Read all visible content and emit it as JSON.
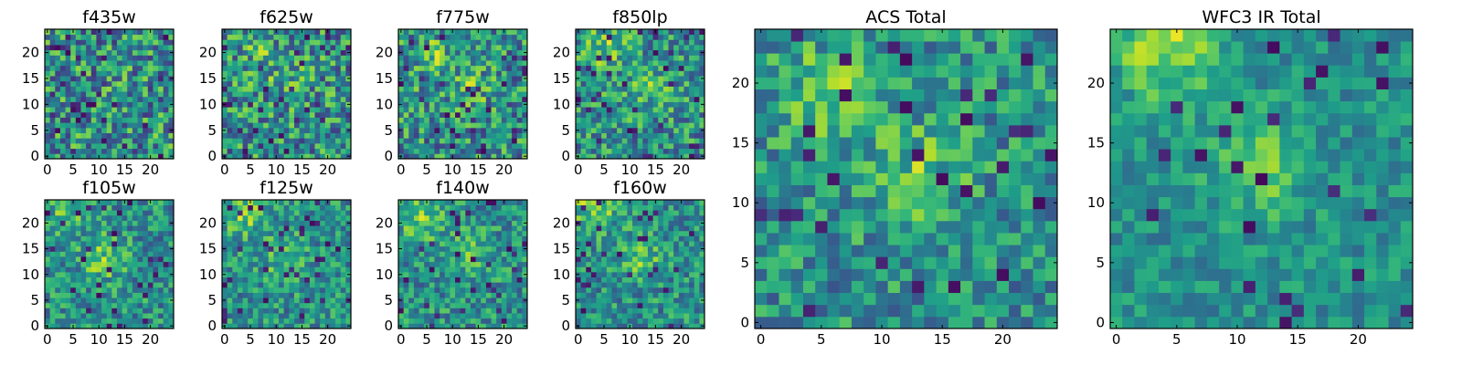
{
  "chart_data": [
    {
      "type": "heatmap",
      "title": "f435w",
      "xticks": [
        0,
        5,
        10,
        15,
        20
      ],
      "yticks": [
        0,
        5,
        10,
        15,
        20
      ],
      "xlim": [
        -0.5,
        24.5
      ],
      "ylim": [
        -0.5,
        24.5
      ],
      "grid": false,
      "colormap": "viridis",
      "seed": 11,
      "hotspots": [],
      "cold_prob": 0.05,
      "noise": 0.34
    },
    {
      "type": "heatmap",
      "title": "f625w",
      "xticks": [
        0,
        5,
        10,
        15,
        20
      ],
      "yticks": [
        0,
        5,
        10,
        15,
        20
      ],
      "xlim": [
        -0.5,
        24.5
      ],
      "ylim": [
        -0.5,
        24.5
      ],
      "grid": false,
      "colormap": "viridis",
      "seed": 23,
      "hotspots": [
        [
          7,
          19,
          0.12
        ],
        [
          13,
          14,
          0.1
        ]
      ],
      "cold_prob": 0.05,
      "noise": 0.33
    },
    {
      "type": "heatmap",
      "title": "f775w",
      "xticks": [
        0,
        5,
        10,
        15,
        20
      ],
      "yticks": [
        0,
        5,
        10,
        15,
        20
      ],
      "xlim": [
        -0.5,
        24.5
      ],
      "ylim": [
        -0.5,
        24.5
      ],
      "grid": false,
      "colormap": "viridis",
      "seed": 37,
      "hotspots": [
        [
          6,
          19,
          0.18
        ],
        [
          13,
          13,
          0.16
        ]
      ],
      "cold_prob": 0.05,
      "noise": 0.32
    },
    {
      "type": "heatmap",
      "title": "f850lp",
      "xticks": [
        0,
        5,
        10,
        15,
        20
      ],
      "yticks": [
        0,
        5,
        10,
        15,
        20
      ],
      "xlim": [
        -0.5,
        24.5
      ],
      "ylim": [
        -0.5,
        24.5
      ],
      "grid": false,
      "colormap": "viridis",
      "seed": 41,
      "hotspots": [
        [
          5,
          21,
          0.22
        ],
        [
          13,
          13,
          0.18
        ]
      ],
      "cold_prob": 0.05,
      "noise": 0.3
    },
    {
      "type": "heatmap",
      "title": "ACS Total",
      "xticks": [
        0,
        5,
        10,
        15,
        20
      ],
      "yticks": [
        0,
        5,
        10,
        15,
        20
      ],
      "xlim": [
        -0.5,
        24.5
      ],
      "ylim": [
        -0.5,
        24.5
      ],
      "grid": false,
      "colormap": "viridis",
      "seed": 53,
      "hotspots": [
        [
          6,
          19,
          0.24
        ],
        [
          13,
          12,
          0.22
        ]
      ],
      "cold_prob": 0.04,
      "noise": 0.24
    },
    {
      "type": "heatmap",
      "title": "WFC3 IR Total",
      "xticks": [
        0,
        5,
        10,
        15,
        20
      ],
      "yticks": [
        0,
        5,
        10,
        15,
        20
      ],
      "xlim": [
        -0.5,
        24.5
      ],
      "ylim": [
        -0.5,
        24.5
      ],
      "grid": false,
      "colormap": "viridis",
      "seed": 67,
      "hotspots": [
        [
          4,
          23,
          0.35
        ],
        [
          12,
          13,
          0.24
        ]
      ],
      "cold_prob": 0.04,
      "noise": 0.16
    },
    {
      "type": "heatmap",
      "title": "f105w",
      "xticks": [
        0,
        5,
        10,
        15,
        20
      ],
      "yticks": [
        0,
        5,
        10,
        15,
        20
      ],
      "xlim": [
        -0.5,
        24.5
      ],
      "ylim": [
        -0.5,
        24.5
      ],
      "grid": false,
      "colormap": "viridis",
      "seed": 71,
      "hotspots": [
        [
          4,
          22,
          0.2
        ],
        [
          11,
          13,
          0.24
        ]
      ],
      "cold_prob": 0.05,
      "noise": 0.25
    },
    {
      "type": "heatmap",
      "title": "f125w",
      "xticks": [
        0,
        5,
        10,
        15,
        20
      ],
      "yticks": [
        0,
        5,
        10,
        15,
        20
      ],
      "xlim": [
        -0.5,
        24.5
      ],
      "ylim": [
        -0.5,
        24.5
      ],
      "grid": false,
      "colormap": "viridis",
      "seed": 83,
      "hotspots": [
        [
          4,
          22,
          0.26
        ],
        [
          12,
          13,
          0.22
        ]
      ],
      "cold_prob": 0.05,
      "noise": 0.24
    },
    {
      "type": "heatmap",
      "title": "f140w",
      "xticks": [
        0,
        5,
        10,
        15,
        20
      ],
      "yticks": [
        0,
        5,
        10,
        15,
        20
      ],
      "xlim": [
        -0.5,
        24.5
      ],
      "ylim": [
        -0.5,
        24.5
      ],
      "grid": false,
      "colormap": "viridis",
      "seed": 97,
      "hotspots": [
        [
          4,
          21,
          0.26
        ],
        [
          13,
          14,
          0.22
        ]
      ],
      "cold_prob": 0.05,
      "noise": 0.24
    },
    {
      "type": "heatmap",
      "title": "f160w",
      "xticks": [
        0,
        5,
        10,
        15,
        20
      ],
      "yticks": [
        0,
        5,
        10,
        15,
        20
      ],
      "xlim": [
        -0.5,
        24.5
      ],
      "ylim": [
        -0.5,
        24.5
      ],
      "grid": false,
      "colormap": "viridis",
      "seed": 101,
      "hotspots": [
        [
          3,
          23,
          0.3
        ],
        [
          12,
          13,
          0.22
        ]
      ],
      "cold_prob": 0.05,
      "noise": 0.24
    }
  ],
  "colors": {
    "viridis": [
      "#440154",
      "#482878",
      "#3e4989",
      "#31688e",
      "#26828e",
      "#1f9e89",
      "#35b779",
      "#6ece58",
      "#b5de2b",
      "#fde725"
    ]
  }
}
